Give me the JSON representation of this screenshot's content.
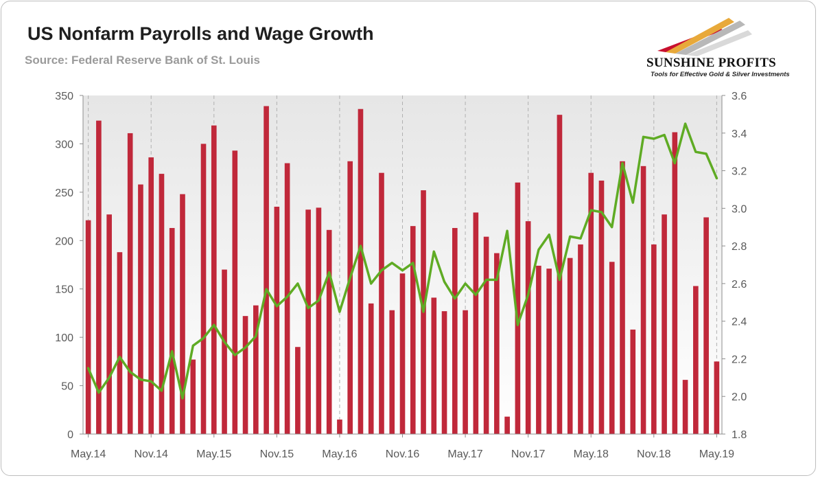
{
  "header": {
    "title": "US Nonfarm Payrolls and Wage Growth",
    "source": "Source: Federal Reserve Bank of St. Louis"
  },
  "logo": {
    "name": "SUNSHINE PROFITS",
    "tagline": "Tools for Effective Gold & Silver Investments"
  },
  "colors": {
    "bar": "#c0283a",
    "line": "#5fab24",
    "plot_bg": "#ececec"
  },
  "chart_data": {
    "type": "bar",
    "title": "US Nonfarm Payrolls and Wage Growth",
    "x_tick_labels": [
      "May.14",
      "Nov.14",
      "May.15",
      "Nov.15",
      "May.16",
      "Nov.16",
      "May.17",
      "Nov.17",
      "May.18",
      "Nov.18",
      "May.19"
    ],
    "left_axis": {
      "ylim": [
        0,
        350
      ],
      "ticks": [
        "0",
        "50",
        "100",
        "150",
        "200",
        "250",
        "300",
        "350"
      ]
    },
    "right_axis": {
      "ylim": [
        1.8,
        3.6
      ],
      "ticks": [
        "1.8",
        "2.0",
        "2.2",
        "2.4",
        "2.6",
        "2.8",
        "3.0",
        "3.2",
        "3.4",
        "3.6"
      ]
    },
    "x_start": "May.14",
    "x_end": "Jun.19",
    "series": [
      {
        "name": "Nonfarm Payrolls",
        "type": "bar",
        "axis": "left",
        "values": [
          221,
          324,
          227,
          188,
          311,
          258,
          286,
          269,
          213,
          248,
          77,
          300,
          319,
          170,
          293,
          122,
          133,
          339,
          235,
          280,
          90,
          232,
          234,
          211,
          15,
          282,
          336,
          135,
          270,
          128,
          166,
          215,
          252,
          141,
          127,
          213,
          128,
          229,
          204,
          187,
          18,
          260,
          220,
          174,
          171,
          330,
          182,
          196,
          270,
          262,
          178,
          282,
          108,
          277,
          196,
          227,
          312,
          56,
          153,
          224,
          75
        ]
      },
      {
        "name": "Wage Growth",
        "type": "line",
        "axis": "right",
        "values": [
          2.15,
          2.02,
          2.1,
          2.21,
          2.13,
          2.09,
          2.08,
          2.03,
          2.24,
          1.99,
          2.27,
          2.31,
          2.38,
          2.29,
          2.22,
          2.26,
          2.32,
          2.57,
          2.48,
          2.53,
          2.6,
          2.47,
          2.51,
          2.66,
          2.45,
          2.63,
          2.8,
          2.6,
          2.67,
          2.71,
          2.67,
          2.71,
          2.45,
          2.77,
          2.61,
          2.52,
          2.6,
          2.54,
          2.62,
          2.62,
          2.88,
          2.38,
          2.54,
          2.78,
          2.86,
          2.62,
          2.85,
          2.84,
          2.99,
          2.98,
          2.9,
          3.24,
          3.03,
          3.38,
          3.37,
          3.39,
          3.24,
          3.45,
          3.3,
          3.29,
          3.16
        ]
      }
    ],
    "grid": true
  }
}
